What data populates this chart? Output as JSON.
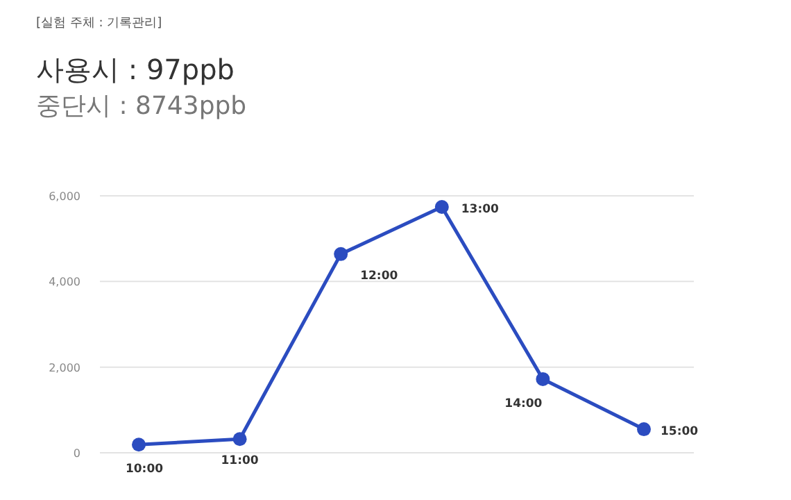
{
  "chart_data": {
    "type": "line",
    "title": "사용시 : 97ppb",
    "subtitle": "중단시 : 8743ppb",
    "annotations": [
      "[실험 주체 : 기록관리]"
    ],
    "categories": [
      "10:00",
      "11:00",
      "12:00",
      "13:00",
      "14:00",
      "15:00"
    ],
    "series": [
      {
        "color": "#2b4cc0",
        "values": [
          190,
          320,
          4640,
          5740,
          1720,
          550
        ]
      }
    ],
    "ylim": [
      0,
      6000
    ],
    "yticks": [
      {
        "value": 0,
        "label": "0"
      },
      {
        "value": 2000,
        "label": "2,000"
      },
      {
        "value": 4000,
        "label": "4,000"
      },
      {
        "value": 6000,
        "label": "6,000"
      }
    ],
    "grid": "y",
    "marker": "circle",
    "line_style": "solid"
  }
}
